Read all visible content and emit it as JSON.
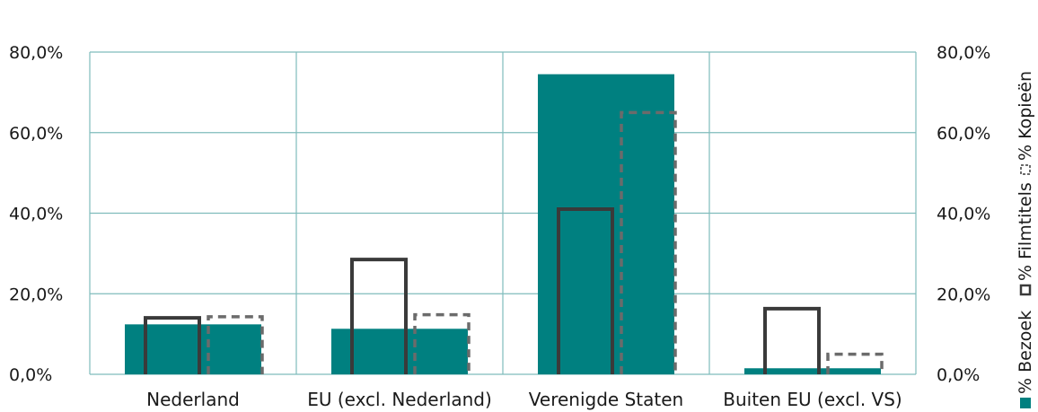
{
  "chart_data": {
    "type": "bar",
    "categories": [
      "Nederland",
      "EU (excl. Nederland)",
      "Verenigde Staten",
      "Buiten EU (excl. VS)"
    ],
    "series": [
      {
        "name": "% Bezoek",
        "style": "filled",
        "color": "#008080",
        "values": [
          12.4,
          11.3,
          74.5,
          1.5
        ]
      },
      {
        "name": "% Filmtitels",
        "style": "outline",
        "color": "#3a3a3a",
        "values": [
          14.0,
          28.5,
          41.0,
          16.3
        ]
      },
      {
        "name": "% Kopieën",
        "style": "dashed-outline",
        "color": "#6b6b6b",
        "values": [
          14.3,
          14.8,
          65.0,
          5.0
        ]
      }
    ],
    "y_ticks": [
      "0,0%",
      "20,0%",
      "40,0%",
      "60,0%",
      "80,0%"
    ],
    "ylim": [
      0,
      80
    ],
    "grid": true,
    "legend_position": "right-vertical",
    "title": "",
    "xlabel": "",
    "ylabel": ""
  }
}
